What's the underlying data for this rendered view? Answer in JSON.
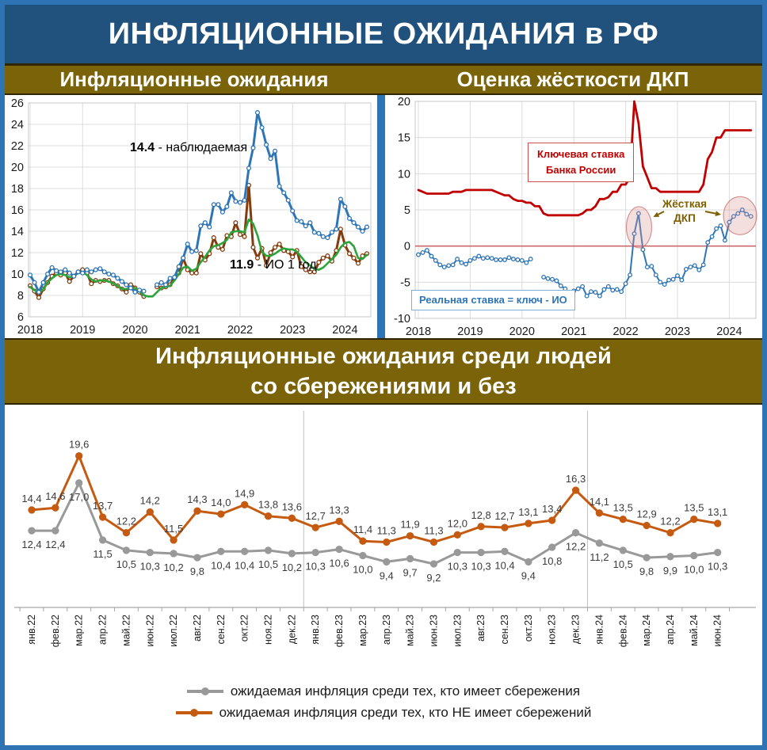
{
  "header": {
    "title": "ИНФЛЯЦИОННЫЕ ОЖИДАНИЯ в РФ"
  },
  "section_headers": {
    "left": "Инфляционные ожидания",
    "right": "Оценка жёсткости ДКП",
    "bottom_line1": "Инфляционные ожидания среди людей",
    "bottom_line2": "со сбережениями и без"
  },
  "colors": {
    "frame_blue": "#2E74B5",
    "banner_blue": "#21527D",
    "band_gold": "#7A6309",
    "observed_blue": "#2E75B6",
    "io_brown": "#843C0C",
    "trend_green": "#2CA43C",
    "key_rate_red": "#C00000",
    "zero_line_rose": "#C9696C",
    "savers_gray": "#999999",
    "nonsavers_orange": "#C55A11",
    "tight_gold": "#7F6000"
  },
  "chart_data": [
    {
      "id": "left",
      "type": "line",
      "title": "Инфляционные ожидания",
      "x_start": "янв 2018",
      "x_end": "июн 2024",
      "x_tick_labels": [
        "2018",
        "2019",
        "2020",
        "2021",
        "2022",
        "2023",
        "2024"
      ],
      "ylim": [
        6,
        26
      ],
      "yticks": [
        6,
        8,
        10,
        12,
        14,
        16,
        18,
        20,
        22,
        24,
        26
      ],
      "grid": true,
      "series": [
        {
          "name": "наблюдаемая",
          "color": "#2E75B6",
          "marker": "open-circle",
          "values": [
            9.9,
            9.2,
            8.3,
            9.2,
            10.0,
            10.6,
            10.3,
            10.2,
            10.4,
            10.1,
            9.8,
            10.2,
            10.1,
            10.4,
            10.2,
            10.4,
            10.5,
            10.2,
            10.0,
            9.9,
            9.6,
            9.3,
            9.0,
            8.7,
            8.3,
            8.5,
            8.4,
            null,
            null,
            9.0,
            9.2,
            9.0,
            9.6,
            9.7,
            10.7,
            11.5,
            12.8,
            12.1,
            12.2,
            14.5,
            14.8,
            14.4,
            16.5,
            16.5,
            15.8,
            16.3,
            17.6,
            16.8,
            16.7,
            16.9,
            19.9,
            21.8,
            25.1,
            23.7,
            22.1,
            20.8,
            21.5,
            18.2,
            17.6,
            16.9,
            15.9,
            15.0,
            14.9,
            14.5,
            14.8,
            13.9,
            13.8,
            13.5,
            13.4,
            13.9,
            14.2,
            17.0,
            16.3,
            15.2,
            14.8,
            14.4,
            14.0,
            14.4
          ]
        },
        {
          "name": "ИО 1 год",
          "color": "#843C0C",
          "marker": "open-circle",
          "values": [
            8.9,
            8.4,
            7.8,
            8.6,
            9.2,
            9.8,
            10.1,
            9.9,
            10.1,
            9.3,
            9.8,
            10.2,
            10.4,
            10.1,
            9.1,
            9.4,
            9.3,
            9.4,
            9.4,
            9.1,
            8.9,
            8.6,
            8.3,
            9.0,
            8.7,
            8.3,
            7.9,
            null,
            null,
            8.8,
            8.7,
            8.8,
            9.0,
            9.7,
            10.1,
            11.5,
            10.4,
            10.1,
            10.1,
            11.9,
            11.3,
            11.9,
            13.4,
            12.5,
            12.3,
            13.6,
            13.5,
            14.8,
            13.7,
            13.5,
            18.3,
            12.5,
            11.5,
            12.4,
            10.8,
            12.0,
            12.5,
            12.8,
            12.2,
            12.1,
            11.6,
            12.2,
            10.7,
            10.4,
            10.2,
            10.2,
            11.1,
            11.5,
            11.7,
            11.2,
            12.2,
            14.2,
            12.7,
            11.9,
            11.5,
            11.0,
            11.7,
            11.9
          ]
        },
        {
          "name": "тренд",
          "color": "#2CA43C",
          "marker": "none",
          "values": [
            8.8,
            8.5,
            8.2,
            8.6,
            9.2,
            9.6,
            9.9,
            10.0,
            9.9,
            9.7,
            9.8,
            10.1,
            10.2,
            9.9,
            9.5,
            9.3,
            9.4,
            9.4,
            9.3,
            9.1,
            8.9,
            8.6,
            8.6,
            8.7,
            8.7,
            8.4,
            8.0,
            7.9,
            7.9,
            8.3,
            8.7,
            8.8,
            8.9,
            9.4,
            10.0,
            10.6,
            10.7,
            10.3,
            10.5,
            11.1,
            11.6,
            12.2,
            12.6,
            12.7,
            12.9,
            13.2,
            13.9,
            14.0,
            14.0,
            13.9,
            15.1,
            14.7,
            13.6,
            12.1,
            11.7,
            11.7,
            11.9,
            12.2,
            12.4,
            12.3,
            12.3,
            12.1,
            11.6,
            11.1,
            10.8,
            10.5,
            10.4,
            10.6,
            11.0,
            11.4,
            11.8,
            12.5,
            12.9,
            13.0,
            12.6,
            11.5,
            11.4,
            11.8
          ]
        }
      ],
      "annotations": [
        {
          "value": "14.4",
          "label": " - наблюдаемая",
          "color": "#2E75B6"
        },
        {
          "value": "11.9",
          "label": " - ИО 1 год",
          "color": "#843C0C"
        }
      ]
    },
    {
      "id": "right",
      "type": "line",
      "title": "Оценка жёсткости ДКП",
      "x_start": "янв 2018",
      "x_end": "июн 2024",
      "x_tick_labels": [
        "2018",
        "2019",
        "2020",
        "2021",
        "2022",
        "2023",
        "2024"
      ],
      "ylim": [
        -10,
        20
      ],
      "yticks": [
        -10,
        -5,
        0,
        5,
        10,
        15,
        20
      ],
      "grid": true,
      "zero_line": true,
      "series": [
        {
          "name": "Ключевая ставка Банка России",
          "color": "#C00000",
          "marker": "none",
          "values": [
            7.75,
            7.5,
            7.25,
            7.25,
            7.25,
            7.25,
            7.25,
            7.25,
            7.5,
            7.5,
            7.5,
            7.75,
            7.75,
            7.75,
            7.75,
            7.75,
            7.75,
            7.75,
            7.5,
            7.25,
            7.0,
            7.0,
            6.5,
            6.25,
            6.25,
            6.0,
            6.0,
            5.5,
            5.5,
            4.5,
            4.25,
            4.25,
            4.25,
            4.25,
            4.25,
            4.25,
            4.25,
            4.25,
            4.5,
            5.0,
            5.0,
            5.5,
            6.5,
            6.5,
            6.75,
            7.5,
            7.5,
            8.5,
            8.5,
            9.5,
            20.0,
            17.0,
            11.0,
            9.5,
            8.0,
            8.0,
            7.5,
            7.5,
            7.5,
            7.5,
            7.5,
            7.5,
            7.5,
            7.5,
            7.5,
            7.5,
            8.5,
            12.0,
            13.0,
            15.0,
            15.0,
            16.0,
            16.0,
            16.0,
            16.0,
            16.0,
            16.0,
            16.0
          ]
        },
        {
          "name": "Реальная ставка = ключ - ИО",
          "color": "#2E75B6",
          "marker": "open-circle",
          "values": [
            -1.2,
            -0.9,
            -0.6,
            -1.4,
            -2.0,
            -2.6,
            -2.9,
            -2.7,
            -2.6,
            -1.8,
            -2.3,
            -2.5,
            -2.0,
            -1.7,
            -1.4,
            -1.7,
            -1.6,
            -1.7,
            -1.9,
            -1.9,
            -1.9,
            -1.6,
            -1.8,
            -1.9,
            -2.0,
            -2.3,
            -1.8,
            null,
            null,
            -4.3,
            -4.5,
            -4.6,
            -4.8,
            -5.5,
            -5.9,
            -7.3,
            -6.2,
            -5.9,
            -5.6,
            -6.9,
            -6.3,
            -6.4,
            -6.9,
            -6.0,
            -5.6,
            -6.1,
            -6.0,
            -6.3,
            -5.2,
            -4.0,
            1.7,
            4.5,
            -0.5,
            -2.9,
            -2.8,
            -4.0,
            -5.0,
            -5.3,
            -4.7,
            -4.6,
            -4.1,
            -4.7,
            -3.2,
            -2.9,
            -2.7,
            -3.3,
            -2.6,
            0.5,
            1.3,
            2.4,
            2.8,
            0.8,
            3.3,
            4.1,
            4.5,
            5.0,
            4.4,
            4.1
          ]
        }
      ],
      "annotations": {
        "key_rate_line1": "Ключевая ставка",
        "key_rate_line2": "Банка России",
        "real_rate": "Реальная ставка = ключ - ИО",
        "tight_line1": "Жёсткая",
        "tight_line2": "ДКП"
      }
    },
    {
      "id": "bottom",
      "type": "line",
      "title": "Инфляционные ожидания среди людей со сбережениями и без",
      "categories": [
        "янв.22",
        "фев.22",
        "мар.22",
        "апр.22",
        "май.22",
        "июн.22",
        "июл.22",
        "авг.22",
        "сен.22",
        "окт.22",
        "ноя.22",
        "дек.22",
        "янв.23",
        "фев.23",
        "мар.23",
        "апр.23",
        "май.23",
        "июн.23",
        "июл.23",
        "авг.23",
        "сен.23",
        "окт.23",
        "ноя.23",
        "дек.23",
        "янв.24",
        "фев.24",
        "мар.24",
        "апр.24",
        "май.24",
        "июн.24"
      ],
      "ylim": [
        5,
        21
      ],
      "data_labels": true,
      "decimal_separator": ",",
      "series": [
        {
          "name": "ожидаемая инфляция среди тех, кто имеет сбережения",
          "color": "#999999",
          "marker": "filled-circle",
          "values": [
            12.4,
            12.4,
            17.0,
            11.5,
            10.5,
            10.3,
            10.2,
            9.8,
            10.4,
            10.4,
            10.5,
            10.2,
            10.3,
            10.6,
            10.0,
            9.4,
            9.7,
            9.2,
            10.3,
            10.3,
            10.4,
            9.4,
            10.8,
            12.2,
            11.2,
            10.5,
            9.8,
            9.9,
            10.0,
            10.3
          ]
        },
        {
          "name": "ожидаемая инфляция среди тех, кто НЕ имеет сбережений",
          "color": "#C55A11",
          "marker": "filled-circle",
          "values": [
            14.4,
            14.6,
            19.6,
            13.7,
            12.2,
            14.2,
            11.5,
            14.3,
            14.0,
            14.9,
            13.8,
            13.6,
            12.7,
            13.3,
            11.4,
            11.3,
            11.9,
            11.3,
            12.0,
            12.8,
            12.7,
            13.1,
            13.4,
            16.3,
            14.1,
            13.5,
            12.9,
            12.2,
            13.5,
            13.1
          ]
        }
      ]
    }
  ]
}
